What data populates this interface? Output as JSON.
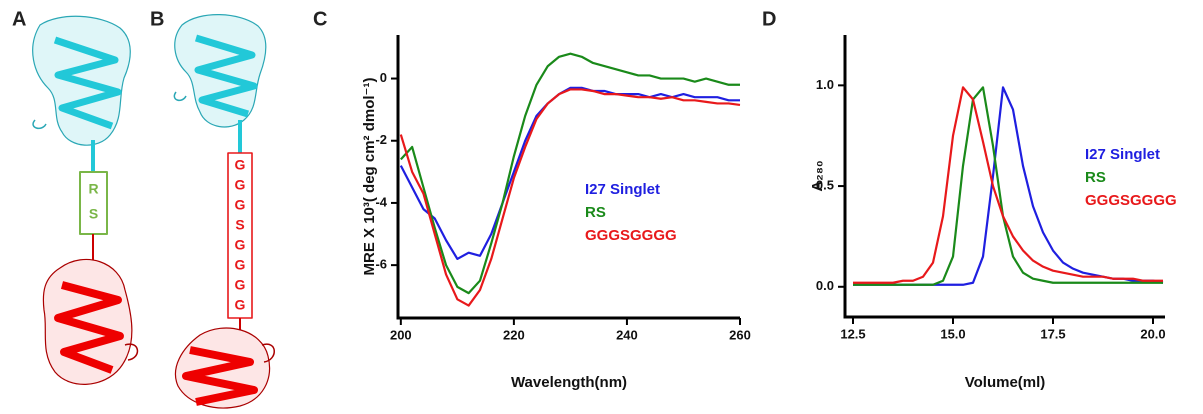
{
  "panel_labels": [
    "A",
    "B",
    "C",
    "D"
  ],
  "linker_A": [
    "R",
    "S"
  ],
  "linker_B": [
    "G",
    "G",
    "G",
    "S",
    "G",
    "G",
    "G",
    "G"
  ],
  "chart_data": [
    {
      "type": "line",
      "x_label": "Wavelength(nm)",
      "y_label": "MRE X 10³( deg cm² dmol⁻¹)",
      "x": [
        200,
        202,
        204,
        206,
        208,
        210,
        212,
        214,
        216,
        218,
        220,
        222,
        224,
        226,
        228,
        230,
        232,
        234,
        236,
        238,
        240,
        242,
        244,
        246,
        248,
        250,
        252,
        254,
        256,
        258,
        260
      ],
      "series": [
        {
          "name": "I27 Singlet",
          "color": "#1f1fe0",
          "values": [
            -2.8,
            -3.5,
            -4.2,
            -4.5,
            -5.2,
            -5.8,
            -5.6,
            -5.7,
            -5.0,
            -4.0,
            -3.0,
            -2.0,
            -1.2,
            -0.8,
            -0.5,
            -0.3,
            -0.3,
            -0.4,
            -0.4,
            -0.5,
            -0.5,
            -0.5,
            -0.6,
            -0.5,
            -0.6,
            -0.5,
            -0.6,
            -0.6,
            -0.6,
            -0.7,
            -0.7
          ]
        },
        {
          "name": "RS",
          "color": "#1a8a1a",
          "values": [
            -2.6,
            -2.2,
            -3.5,
            -4.8,
            -6.0,
            -6.7,
            -6.9,
            -6.5,
            -5.3,
            -4.0,
            -2.5,
            -1.2,
            -0.2,
            0.4,
            0.7,
            0.8,
            0.7,
            0.5,
            0.4,
            0.3,
            0.2,
            0.1,
            0.1,
            0.0,
            0.0,
            0.0,
            -0.1,
            0.0,
            -0.1,
            -0.2,
            -0.2
          ]
        },
        {
          "name": "GGGSGGGG",
          "color": "#e8191b",
          "values": [
            -1.8,
            -3.0,
            -3.7,
            -5.0,
            -6.3,
            -7.1,
            -7.3,
            -6.8,
            -5.8,
            -4.5,
            -3.2,
            -2.2,
            -1.3,
            -0.8,
            -0.5,
            -0.35,
            -0.35,
            -0.4,
            -0.5,
            -0.5,
            -0.55,
            -0.6,
            -0.6,
            -0.65,
            -0.6,
            -0.7,
            -0.7,
            -0.75,
            -0.8,
            -0.8,
            -0.85
          ]
        }
      ],
      "xlim": [
        199.5,
        260
      ],
      "xticks": [
        200,
        220,
        240,
        260
      ],
      "ylim": [
        -7.7,
        1.4
      ],
      "yticks": [
        0,
        -2,
        -4,
        -6
      ]
    },
    {
      "type": "line",
      "x_label": "Volume(ml)",
      "y_label": "A₂₈₀",
      "x": [
        12.5,
        12.75,
        13.0,
        13.25,
        13.5,
        13.75,
        14.0,
        14.25,
        14.5,
        14.75,
        15.0,
        15.25,
        15.5,
        15.75,
        16.0,
        16.25,
        16.5,
        16.75,
        17.0,
        17.25,
        17.5,
        17.75,
        18.0,
        18.25,
        18.5,
        18.75,
        19.0,
        19.25,
        19.5,
        19.75,
        20.0,
        20.25
      ],
      "series": [
        {
          "name": "I27 Singlet",
          "color": "#1f1fe0",
          "values": [
            0.01,
            0.01,
            0.01,
            0.01,
            0.01,
            0.01,
            0.01,
            0.01,
            0.01,
            0.01,
            0.01,
            0.01,
            0.02,
            0.15,
            0.55,
            0.99,
            0.88,
            0.6,
            0.4,
            0.27,
            0.18,
            0.12,
            0.09,
            0.07,
            0.06,
            0.05,
            0.04,
            0.04,
            0.03,
            0.03,
            0.03,
            0.02
          ]
        },
        {
          "name": "RS",
          "color": "#1a8a1a",
          "values": [
            0.01,
            0.01,
            0.01,
            0.01,
            0.01,
            0.01,
            0.01,
            0.01,
            0.01,
            0.03,
            0.15,
            0.6,
            0.93,
            0.99,
            0.7,
            0.35,
            0.15,
            0.07,
            0.04,
            0.03,
            0.02,
            0.02,
            0.02,
            0.02,
            0.02,
            0.02,
            0.02,
            0.02,
            0.02,
            0.02,
            0.02,
            0.02
          ]
        },
        {
          "name": "GGGSGGGG",
          "color": "#e8191b",
          "values": [
            0.02,
            0.02,
            0.02,
            0.02,
            0.02,
            0.03,
            0.03,
            0.05,
            0.12,
            0.35,
            0.75,
            0.99,
            0.93,
            0.72,
            0.5,
            0.35,
            0.25,
            0.18,
            0.13,
            0.1,
            0.08,
            0.07,
            0.06,
            0.05,
            0.05,
            0.05,
            0.04,
            0.04,
            0.04,
            0.03,
            0.03,
            0.03
          ]
        }
      ],
      "xlim": [
        12.3,
        20.3
      ],
      "xticks": [
        12.5,
        {
          "value": 15,
          "label": "15.0"
        },
        17.5,
        {
          "value": 20,
          "label": "20.0"
        }
      ],
      "ylim": [
        -0.15,
        1.25
      ],
      "yticks": [
        {
          "value": 0,
          "label": "0.0"
        },
        0.5,
        {
          "value": 1,
          "label": "1.0"
        }
      ]
    }
  ]
}
